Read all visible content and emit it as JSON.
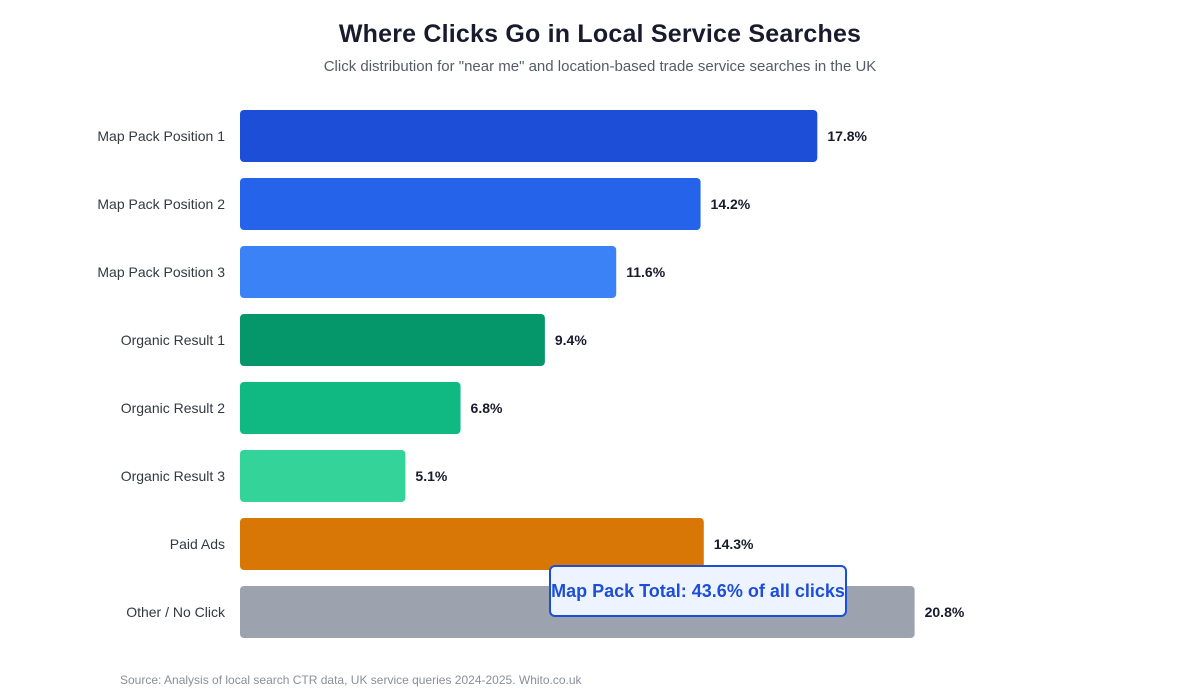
{
  "chart_data": {
    "type": "bar",
    "orientation": "horizontal",
    "title": "Where Clicks Go in Local Service Searches",
    "subtitle": "Click distribution for \"near me\" and location-based trade service searches in the UK",
    "categories": [
      "Map Pack Position 1",
      "Map Pack Position 2",
      "Map Pack Position 3",
      "Organic Result 1",
      "Organic Result 2",
      "Organic Result 3",
      "Paid Ads",
      "Other / No Click"
    ],
    "values": [
      17.8,
      14.2,
      11.6,
      9.4,
      6.8,
      5.1,
      14.3,
      20.8
    ],
    "value_labels": [
      "17.8%",
      "14.2%",
      "11.6%",
      "9.4%",
      "6.8%",
      "5.1%",
      "14.3%",
      "20.8%"
    ],
    "colors": [
      "#1d4ed8",
      "#2563eb",
      "#3b82f6",
      "#059669",
      "#10b981",
      "#34d399",
      "#d97706",
      "#9ca3af"
    ],
    "xlim": [
      0,
      30
    ],
    "xlabel": "",
    "ylabel": "",
    "grid": false,
    "annotation": "Map Pack Total: 43.6% of all clicks",
    "source": "Source: Analysis of local search CTR data, UK service queries 2024-2025. Whito.co.uk"
  }
}
